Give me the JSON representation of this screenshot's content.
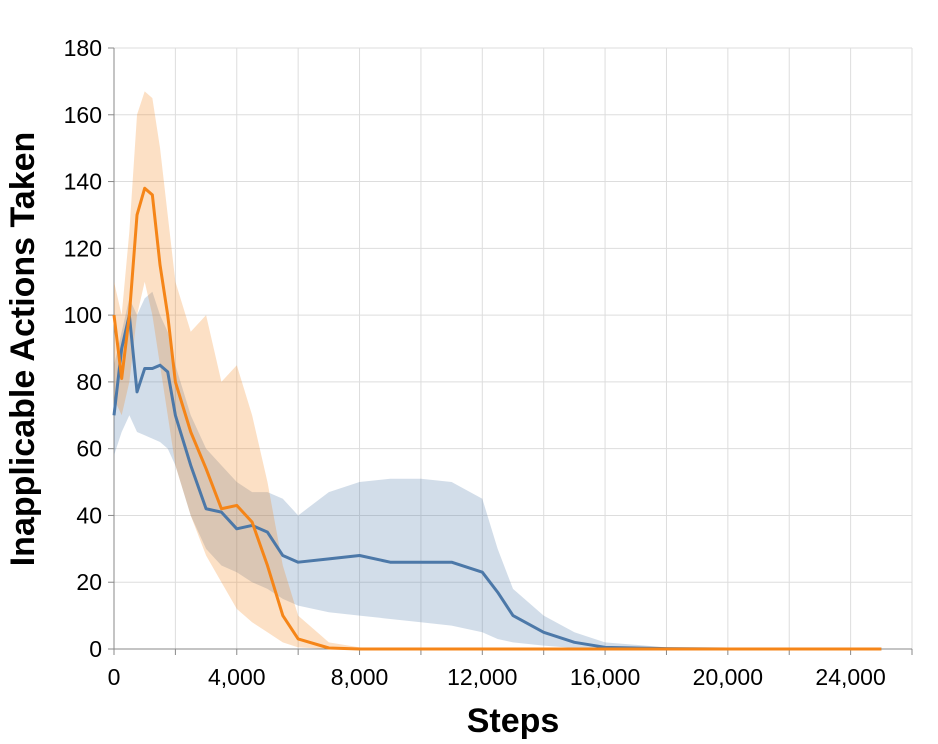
{
  "chart_data": {
    "type": "line",
    "x_label": "Steps",
    "y_label": "Inapplicable Actions Taken",
    "x": [
      0,
      250,
      500,
      750,
      1000,
      1250,
      1500,
      1750,
      2000,
      2500,
      3000,
      3500,
      4000,
      4500,
      5000,
      5500,
      6000,
      7000,
      8000,
      9000,
      10000,
      11000,
      12000,
      12500,
      13000,
      14000,
      15000,
      16000,
      18000,
      20000,
      22000,
      25000
    ],
    "series": [
      {
        "color": "#4c78a8",
        "values": [
          70,
          90,
          100,
          77,
          84,
          84,
          85,
          83,
          70,
          55,
          42,
          41,
          36,
          37,
          35,
          28,
          26,
          27,
          28,
          26,
          26,
          26,
          23,
          17,
          10,
          5,
          2,
          0.5,
          0.1,
          0,
          0,
          0
        ],
        "lower": [
          58,
          65,
          70,
          65,
          64,
          63,
          62,
          60,
          55,
          40,
          30,
          25,
          23,
          20,
          18,
          15,
          13,
          11,
          10,
          9,
          8,
          7,
          5,
          3,
          2,
          1,
          0.3,
          0,
          0,
          0,
          0,
          0
        ],
        "upper": [
          85,
          95,
          105,
          100,
          105,
          107,
          100,
          95,
          85,
          70,
          60,
          55,
          50,
          47,
          47,
          45,
          40,
          47,
          50,
          51,
          51,
          50,
          45,
          30,
          18,
          10,
          5,
          2,
          0.5,
          0.2,
          0,
          0
        ]
      },
      {
        "color": "#f58518",
        "values": [
          100,
          81,
          100,
          130,
          138,
          136,
          115,
          100,
          80,
          65,
          54,
          42,
          43,
          38,
          25,
          10,
          3,
          0.3,
          0,
          0,
          0,
          0,
          0,
          0,
          0,
          0,
          0,
          0,
          0,
          0,
          0,
          0
        ],
        "lower": [
          75,
          70,
          80,
          100,
          110,
          100,
          85,
          70,
          55,
          40,
          28,
          20,
          12,
          8,
          5,
          2,
          0.5,
          0,
          0,
          0,
          0,
          0,
          0,
          0,
          0,
          0,
          0,
          0,
          0,
          0,
          0,
          0
        ],
        "upper": [
          110,
          100,
          125,
          160,
          167,
          165,
          150,
          130,
          110,
          95,
          100,
          80,
          85,
          70,
          50,
          25,
          10,
          2,
          0.5,
          0,
          0,
          0,
          0,
          0,
          0,
          0,
          0,
          0,
          0,
          0,
          0,
          0
        ]
      }
    ],
    "band_opacity": 0.25,
    "xlim": [
      0,
      26000
    ],
    "ylim": [
      0,
      180
    ],
    "xticks": [
      0,
      {
        "value": 4000,
        "label": "4,000"
      },
      {
        "value": 8000,
        "label": "8,000"
      },
      {
        "value": 12000,
        "label": "12,000"
      },
      {
        "value": 16000,
        "label": "16,000"
      },
      {
        "value": 20000,
        "label": "20,000"
      },
      {
        "value": 24000,
        "label": "24,000"
      }
    ],
    "x_minor_ticks": [
      2000,
      6000,
      10000,
      14000,
      18000,
      22000,
      26000
    ],
    "yticks": [
      0,
      20,
      40,
      60,
      80,
      100,
      120,
      140,
      160,
      180
    ],
    "grid": true
  }
}
